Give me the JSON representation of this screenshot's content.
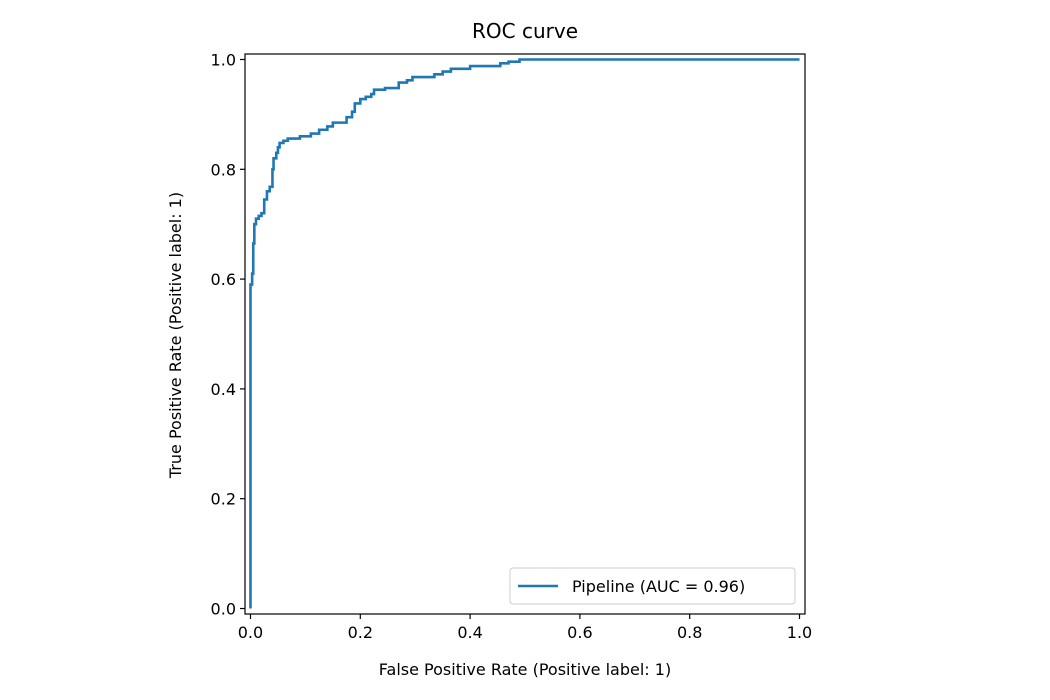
{
  "chart_data": {
    "type": "line",
    "title": "ROC curve",
    "xlabel": "False Positive Rate (Positive label: 1)",
    "ylabel": "True Positive Rate (Positive label: 1)",
    "xlim": [
      -0.01,
      1.01
    ],
    "ylim": [
      -0.01,
      1.01
    ],
    "xticks": [
      0.0,
      0.2,
      0.4,
      0.6,
      0.8,
      1.0
    ],
    "yticks": [
      0.0,
      0.2,
      0.4,
      0.6,
      0.8,
      1.0
    ],
    "xtick_labels": [
      "0.0",
      "0.2",
      "0.4",
      "0.6",
      "0.8",
      "1.0"
    ],
    "ytick_labels": [
      "0.0",
      "0.2",
      "0.4",
      "0.6",
      "0.8",
      "1.0"
    ],
    "grid": false,
    "legend_position": "lower-right",
    "series": [
      {
        "name": "Pipeline (AUC = 0.96)",
        "color": "#1f77b4",
        "points": [
          [
            0.0,
            0.0
          ],
          [
            0.0,
            0.59
          ],
          [
            0.003,
            0.59
          ],
          [
            0.003,
            0.61
          ],
          [
            0.005,
            0.61
          ],
          [
            0.005,
            0.665
          ],
          [
            0.007,
            0.665
          ],
          [
            0.007,
            0.7
          ],
          [
            0.01,
            0.7
          ],
          [
            0.01,
            0.71
          ],
          [
            0.015,
            0.71
          ],
          [
            0.015,
            0.715
          ],
          [
            0.02,
            0.715
          ],
          [
            0.02,
            0.72
          ],
          [
            0.025,
            0.72
          ],
          [
            0.025,
            0.745
          ],
          [
            0.03,
            0.745
          ],
          [
            0.03,
            0.76
          ],
          [
            0.035,
            0.76
          ],
          [
            0.035,
            0.768
          ],
          [
            0.04,
            0.768
          ],
          [
            0.04,
            0.8
          ],
          [
            0.042,
            0.8
          ],
          [
            0.042,
            0.82
          ],
          [
            0.047,
            0.82
          ],
          [
            0.047,
            0.83
          ],
          [
            0.05,
            0.83
          ],
          [
            0.05,
            0.84
          ],
          [
            0.053,
            0.84
          ],
          [
            0.053,
            0.848
          ],
          [
            0.06,
            0.848
          ],
          [
            0.06,
            0.852
          ],
          [
            0.068,
            0.852
          ],
          [
            0.068,
            0.856
          ],
          [
            0.09,
            0.856
          ],
          [
            0.09,
            0.86
          ],
          [
            0.11,
            0.86
          ],
          [
            0.11,
            0.865
          ],
          [
            0.125,
            0.865
          ],
          [
            0.125,
            0.872
          ],
          [
            0.14,
            0.872
          ],
          [
            0.14,
            0.878
          ],
          [
            0.15,
            0.878
          ],
          [
            0.15,
            0.885
          ],
          [
            0.175,
            0.885
          ],
          [
            0.175,
            0.895
          ],
          [
            0.185,
            0.895
          ],
          [
            0.185,
            0.905
          ],
          [
            0.19,
            0.905
          ],
          [
            0.19,
            0.92
          ],
          [
            0.2,
            0.92
          ],
          [
            0.2,
            0.928
          ],
          [
            0.21,
            0.928
          ],
          [
            0.21,
            0.932
          ],
          [
            0.22,
            0.932
          ],
          [
            0.22,
            0.937
          ],
          [
            0.225,
            0.937
          ],
          [
            0.225,
            0.945
          ],
          [
            0.245,
            0.945
          ],
          [
            0.245,
            0.948
          ],
          [
            0.27,
            0.948
          ],
          [
            0.27,
            0.958
          ],
          [
            0.285,
            0.958
          ],
          [
            0.285,
            0.962
          ],
          [
            0.295,
            0.962
          ],
          [
            0.295,
            0.968
          ],
          [
            0.335,
            0.968
          ],
          [
            0.335,
            0.973
          ],
          [
            0.35,
            0.973
          ],
          [
            0.35,
            0.978
          ],
          [
            0.365,
            0.978
          ],
          [
            0.365,
            0.983
          ],
          [
            0.4,
            0.983
          ],
          [
            0.4,
            0.988
          ],
          [
            0.455,
            0.988
          ],
          [
            0.455,
            0.993
          ],
          [
            0.47,
            0.993
          ],
          [
            0.47,
            0.996
          ],
          [
            0.49,
            0.996
          ],
          [
            0.49,
            1.0
          ],
          [
            1.0,
            1.0
          ]
        ]
      }
    ]
  }
}
